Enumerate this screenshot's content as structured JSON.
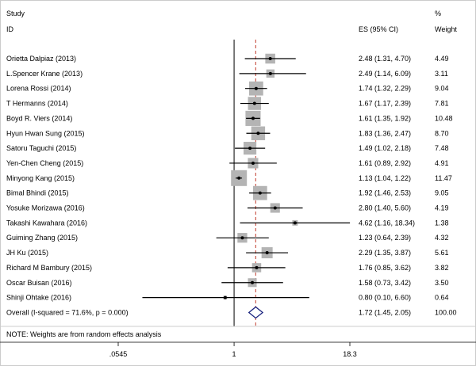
{
  "chart_data": {
    "type": "forest",
    "scale": "log",
    "headers": {
      "study_line1": "Study",
      "study_line2": "ID",
      "es": "ES (95% CI)",
      "weight_line1": "%",
      "weight_line2": "Weight"
    },
    "studies": [
      {
        "label": "Orietta Dalpiaz (2013)",
        "es": 2.48,
        "lo": 1.31,
        "hi": 4.7,
        "es_text": "2.48 (1.31, 4.70)",
        "weight": 4.49,
        "weight_text": "4.49"
      },
      {
        "label": "L.Spencer Krane (2013)",
        "es": 2.49,
        "lo": 1.14,
        "hi": 6.09,
        "es_text": "2.49 (1.14, 6.09)",
        "weight": 3.11,
        "weight_text": "3.11"
      },
      {
        "label": "Lorena Rossi (2014)",
        "es": 1.74,
        "lo": 1.32,
        "hi": 2.29,
        "es_text": "1.74 (1.32, 2.29)",
        "weight": 9.04,
        "weight_text": "9.04"
      },
      {
        "label": "T Hermanns (2014)",
        "es": 1.67,
        "lo": 1.17,
        "hi": 2.39,
        "es_text": "1.67 (1.17, 2.39)",
        "weight": 7.81,
        "weight_text": "7.81"
      },
      {
        "label": "Boyd R. Viers (2014)",
        "es": 1.61,
        "lo": 1.35,
        "hi": 1.92,
        "es_text": "1.61 (1.35, 1.92)",
        "weight": 10.48,
        "weight_text": "10.48"
      },
      {
        "label": "Hyun Hwan Sung (2015)",
        "es": 1.83,
        "lo": 1.36,
        "hi": 2.47,
        "es_text": "1.83 (1.36, 2.47)",
        "weight": 8.7,
        "weight_text": "8.70"
      },
      {
        "label": "Satoru Taguchi (2015)",
        "es": 1.49,
        "lo": 1.02,
        "hi": 2.18,
        "es_text": "1.49 (1.02, 2.18)",
        "weight": 7.48,
        "weight_text": "7.48"
      },
      {
        "label": "Yen-Chen Cheng (2015)",
        "es": 1.61,
        "lo": 0.89,
        "hi": 2.92,
        "es_text": "1.61 (0.89, 2.92)",
        "weight": 4.91,
        "weight_text": "4.91"
      },
      {
        "label": "Minyong Kang (2015)",
        "es": 1.13,
        "lo": 1.04,
        "hi": 1.22,
        "es_text": "1.13 (1.04, 1.22)",
        "weight": 11.47,
        "weight_text": "11.47"
      },
      {
        "label": "Bimal Bhindi (2015)",
        "es": 1.92,
        "lo": 1.46,
        "hi": 2.53,
        "es_text": "1.92 (1.46, 2.53)",
        "weight": 9.05,
        "weight_text": "9.05"
      },
      {
        "label": "Yosuke Morizawa (2016)",
        "es": 2.8,
        "lo": 1.4,
        "hi": 5.6,
        "es_text": "2.80 (1.40, 5.60)",
        "weight": 4.19,
        "weight_text": "4.19"
      },
      {
        "label": "Takashi Kawahara (2016)",
        "es": 4.62,
        "lo": 1.16,
        "hi": 18.34,
        "es_text": "4.62 (1.16, 18.34)",
        "weight": 1.38,
        "weight_text": "1.38"
      },
      {
        "label": "Guiming Zhang (2015)",
        "es": 1.23,
        "lo": 0.64,
        "hi": 2.39,
        "es_text": "1.23 (0.64, 2.39)",
        "weight": 4.32,
        "weight_text": "4.32"
      },
      {
        "label": "JH Ku (2015)",
        "es": 2.29,
        "lo": 1.35,
        "hi": 3.87,
        "es_text": "2.29 (1.35, 3.87)",
        "weight": 5.61,
        "weight_text": "5.61"
      },
      {
        "label": "Richard M Bambury (2015)",
        "es": 1.76,
        "lo": 0.85,
        "hi": 3.62,
        "es_text": "1.76 (0.85, 3.62)",
        "weight": 3.82,
        "weight_text": "3.82"
      },
      {
        "label": "Oscar Buisan (2016)",
        "es": 1.58,
        "lo": 0.73,
        "hi": 3.42,
        "es_text": "1.58 (0.73, 3.42)",
        "weight": 3.5,
        "weight_text": "3.50"
      },
      {
        "label": "Shinji Ohtake (2016)",
        "es": 0.8,
        "lo": 0.1,
        "hi": 6.6,
        "es_text": "0.80 (0.10, 6.60)",
        "weight": 0.64,
        "weight_text": "0.64"
      }
    ],
    "overall": {
      "label": "Overall  (I-squared = 71.6%, p = 0.000)",
      "es": 1.72,
      "lo": 1.45,
      "hi": 2.05,
      "es_text": "1.72 (1.45, 2.05)",
      "weight": 100.0,
      "weight_text": "100.00"
    },
    "note": "NOTE: Weights are from random effects analysis",
    "x_ticks": [
      {
        "value": 0.0545,
        "label": ".0545"
      },
      {
        "value": 1,
        "label": "1"
      },
      {
        "value": 18.3,
        "label": "18.3"
      }
    ],
    "null_line": 1,
    "xlim": [
      0.0545,
      18.3
    ]
  },
  "colors": {
    "weight_box": "#b4b4b4",
    "ci_line": "#000000",
    "overall_line": "#c0392b",
    "diamond": "#1a237e",
    "frame": "#cccccc"
  }
}
